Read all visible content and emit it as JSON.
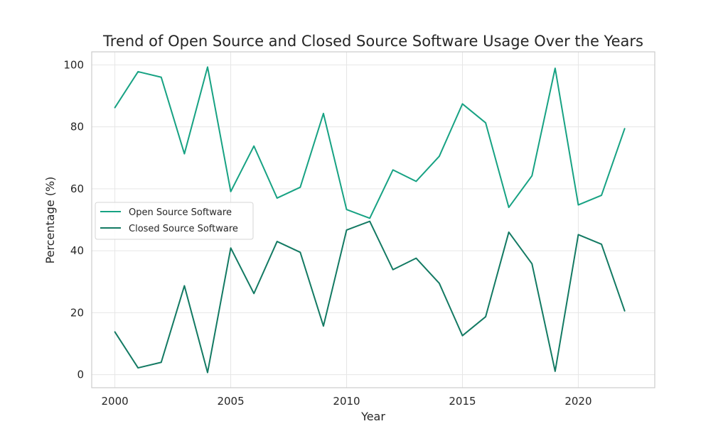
{
  "chart_data": {
    "type": "line",
    "title": "Trend of Open Source and Closed Source Software Usage Over the Years",
    "xlabel": "Year",
    "ylabel": "Percentage (%)",
    "x": [
      2000,
      2001,
      2002,
      2003,
      2004,
      2005,
      2006,
      2007,
      2008,
      2009,
      2010,
      2011,
      2012,
      2013,
      2014,
      2015,
      2016,
      2017,
      2018,
      2019,
      2020,
      2021,
      2022
    ],
    "series": [
      {
        "name": "Open Source Software",
        "color": "#17a283",
        "values": [
          86.2,
          97.8,
          96.0,
          71.3,
          99.3,
          59.1,
          73.8,
          57.0,
          60.5,
          84.3,
          53.3,
          50.5,
          66.1,
          62.4,
          70.5,
          87.4,
          81.3,
          54.0,
          64.2,
          98.9,
          54.8,
          57.9,
          79.4
        ]
      },
      {
        "name": "Closed Source Software",
        "color": "#137a63",
        "values": [
          13.8,
          2.2,
          4.0,
          28.7,
          0.7,
          40.9,
          26.2,
          43.0,
          39.5,
          15.7,
          46.7,
          49.5,
          33.9,
          37.6,
          29.5,
          12.6,
          18.7,
          46.0,
          35.8,
          1.1,
          45.2,
          42.1,
          20.6
        ]
      }
    ],
    "xlim": [
      1999,
      2023.3
    ],
    "ylim": [
      -4.2,
      104.2
    ],
    "x_ticks": [
      2000,
      2005,
      2010,
      2015,
      2020
    ],
    "y_ticks": [
      0,
      20,
      40,
      60,
      80,
      100
    ],
    "grid": true,
    "legend_position": "center-left"
  }
}
